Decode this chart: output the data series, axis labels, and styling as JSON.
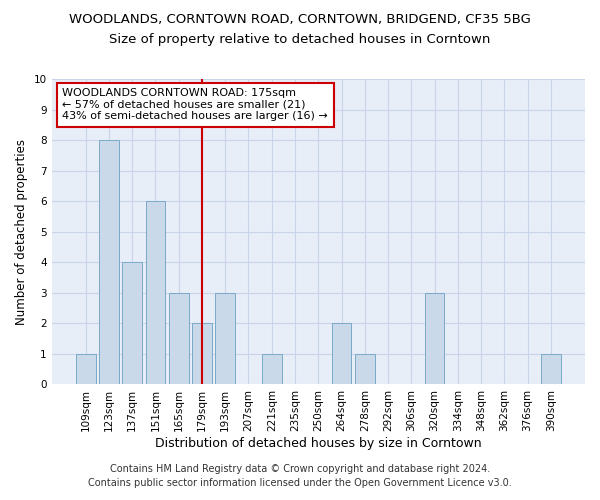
{
  "title": "WOODLANDS, CORNTOWN ROAD, CORNTOWN, BRIDGEND, CF35 5BG",
  "subtitle": "Size of property relative to detached houses in Corntown",
  "xlabel": "Distribution of detached houses by size in Corntown",
  "ylabel": "Number of detached properties",
  "categories": [
    "109sqm",
    "123sqm",
    "137sqm",
    "151sqm",
    "165sqm",
    "179sqm",
    "193sqm",
    "207sqm",
    "221sqm",
    "235sqm",
    "250sqm",
    "264sqm",
    "278sqm",
    "292sqm",
    "306sqm",
    "320sqm",
    "334sqm",
    "348sqm",
    "362sqm",
    "376sqm",
    "390sqm"
  ],
  "values": [
    1,
    8,
    4,
    6,
    3,
    2,
    3,
    0,
    1,
    0,
    0,
    2,
    1,
    0,
    0,
    3,
    0,
    0,
    0,
    0,
    1
  ],
  "bar_color": "#c9d9ea",
  "bar_edge_color": "#7aaac8",
  "reference_line_index": 5,
  "reference_line_color": "#cc0000",
  "ylim": [
    0,
    10
  ],
  "yticks": [
    0,
    1,
    2,
    3,
    4,
    5,
    6,
    7,
    8,
    9,
    10
  ],
  "annotation_box_text": "WOODLANDS CORNTOWN ROAD: 175sqm\n← 57% of detached houses are smaller (21)\n43% of semi-detached houses are larger (16) →",
  "annotation_box_color": "#cc0000",
  "grid_color": "#c8d4e8",
  "bg_color": "#e8eef8",
  "footer": "Contains HM Land Registry data © Crown copyright and database right 2024.\nContains public sector information licensed under the Open Government Licence v3.0.",
  "title_fontsize": 9.5,
  "subtitle_fontsize": 9.5,
  "xlabel_fontsize": 9,
  "ylabel_fontsize": 8.5,
  "tick_fontsize": 7.5,
  "annotation_fontsize": 8,
  "footer_fontsize": 7
}
